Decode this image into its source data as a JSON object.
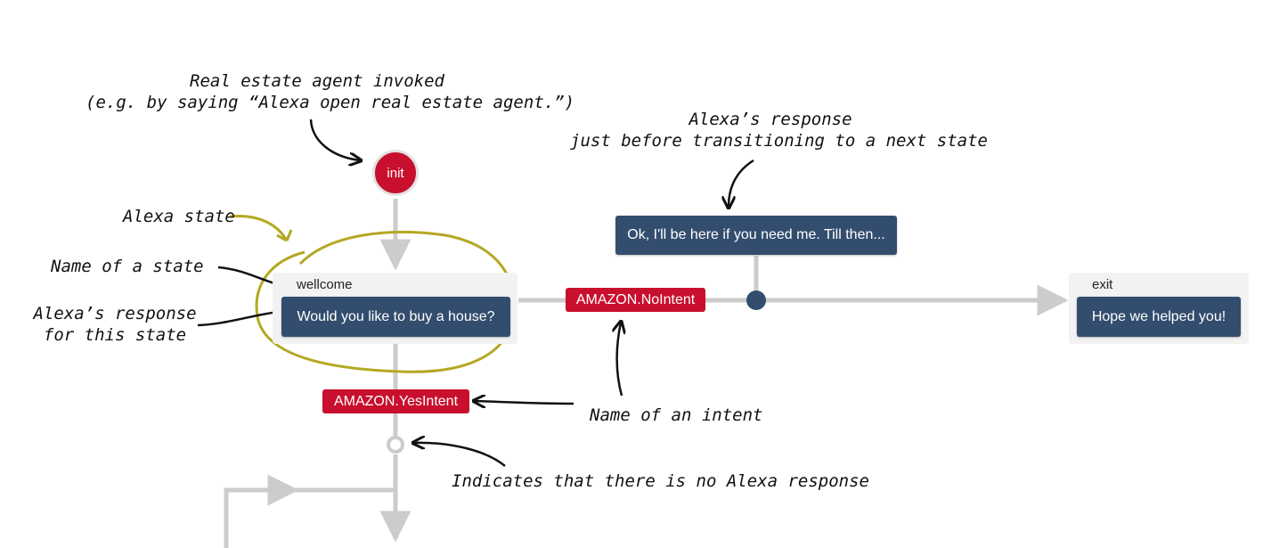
{
  "annotations": {
    "invoked_line1": "Real estate agent invoked",
    "invoked_line2": "(e.g. by saying “Alexa open real estate agent.”)",
    "alexa_state": "Alexa state",
    "name_of_state": "Name of a state",
    "response_state_line1": "Alexa’s response",
    "response_state_line2": "for this state",
    "transition_response_line1": "Alexa’s response",
    "transition_response_line2": "just before transitioning to a next state",
    "name_of_intent": "Name of an intent",
    "no_response": "Indicates that there is no Alexa response"
  },
  "nodes": {
    "init_label": "init",
    "wellcome": {
      "name": "wellcome",
      "response": "Would you like to buy a house?"
    },
    "exit": {
      "name": "exit",
      "response": "Hope we helped you!"
    },
    "transition_response": "Ok, I'll be here if you need me. Till then..."
  },
  "intents": {
    "no_intent": "AMAZON.NoIntent",
    "yes_intent": "AMAZON.YesIntent"
  },
  "colors": {
    "state_red": "#c8102e",
    "response_navy": "#334d6e",
    "connector_gray": "#cccccc",
    "highlight_olive": "#b5a823"
  }
}
